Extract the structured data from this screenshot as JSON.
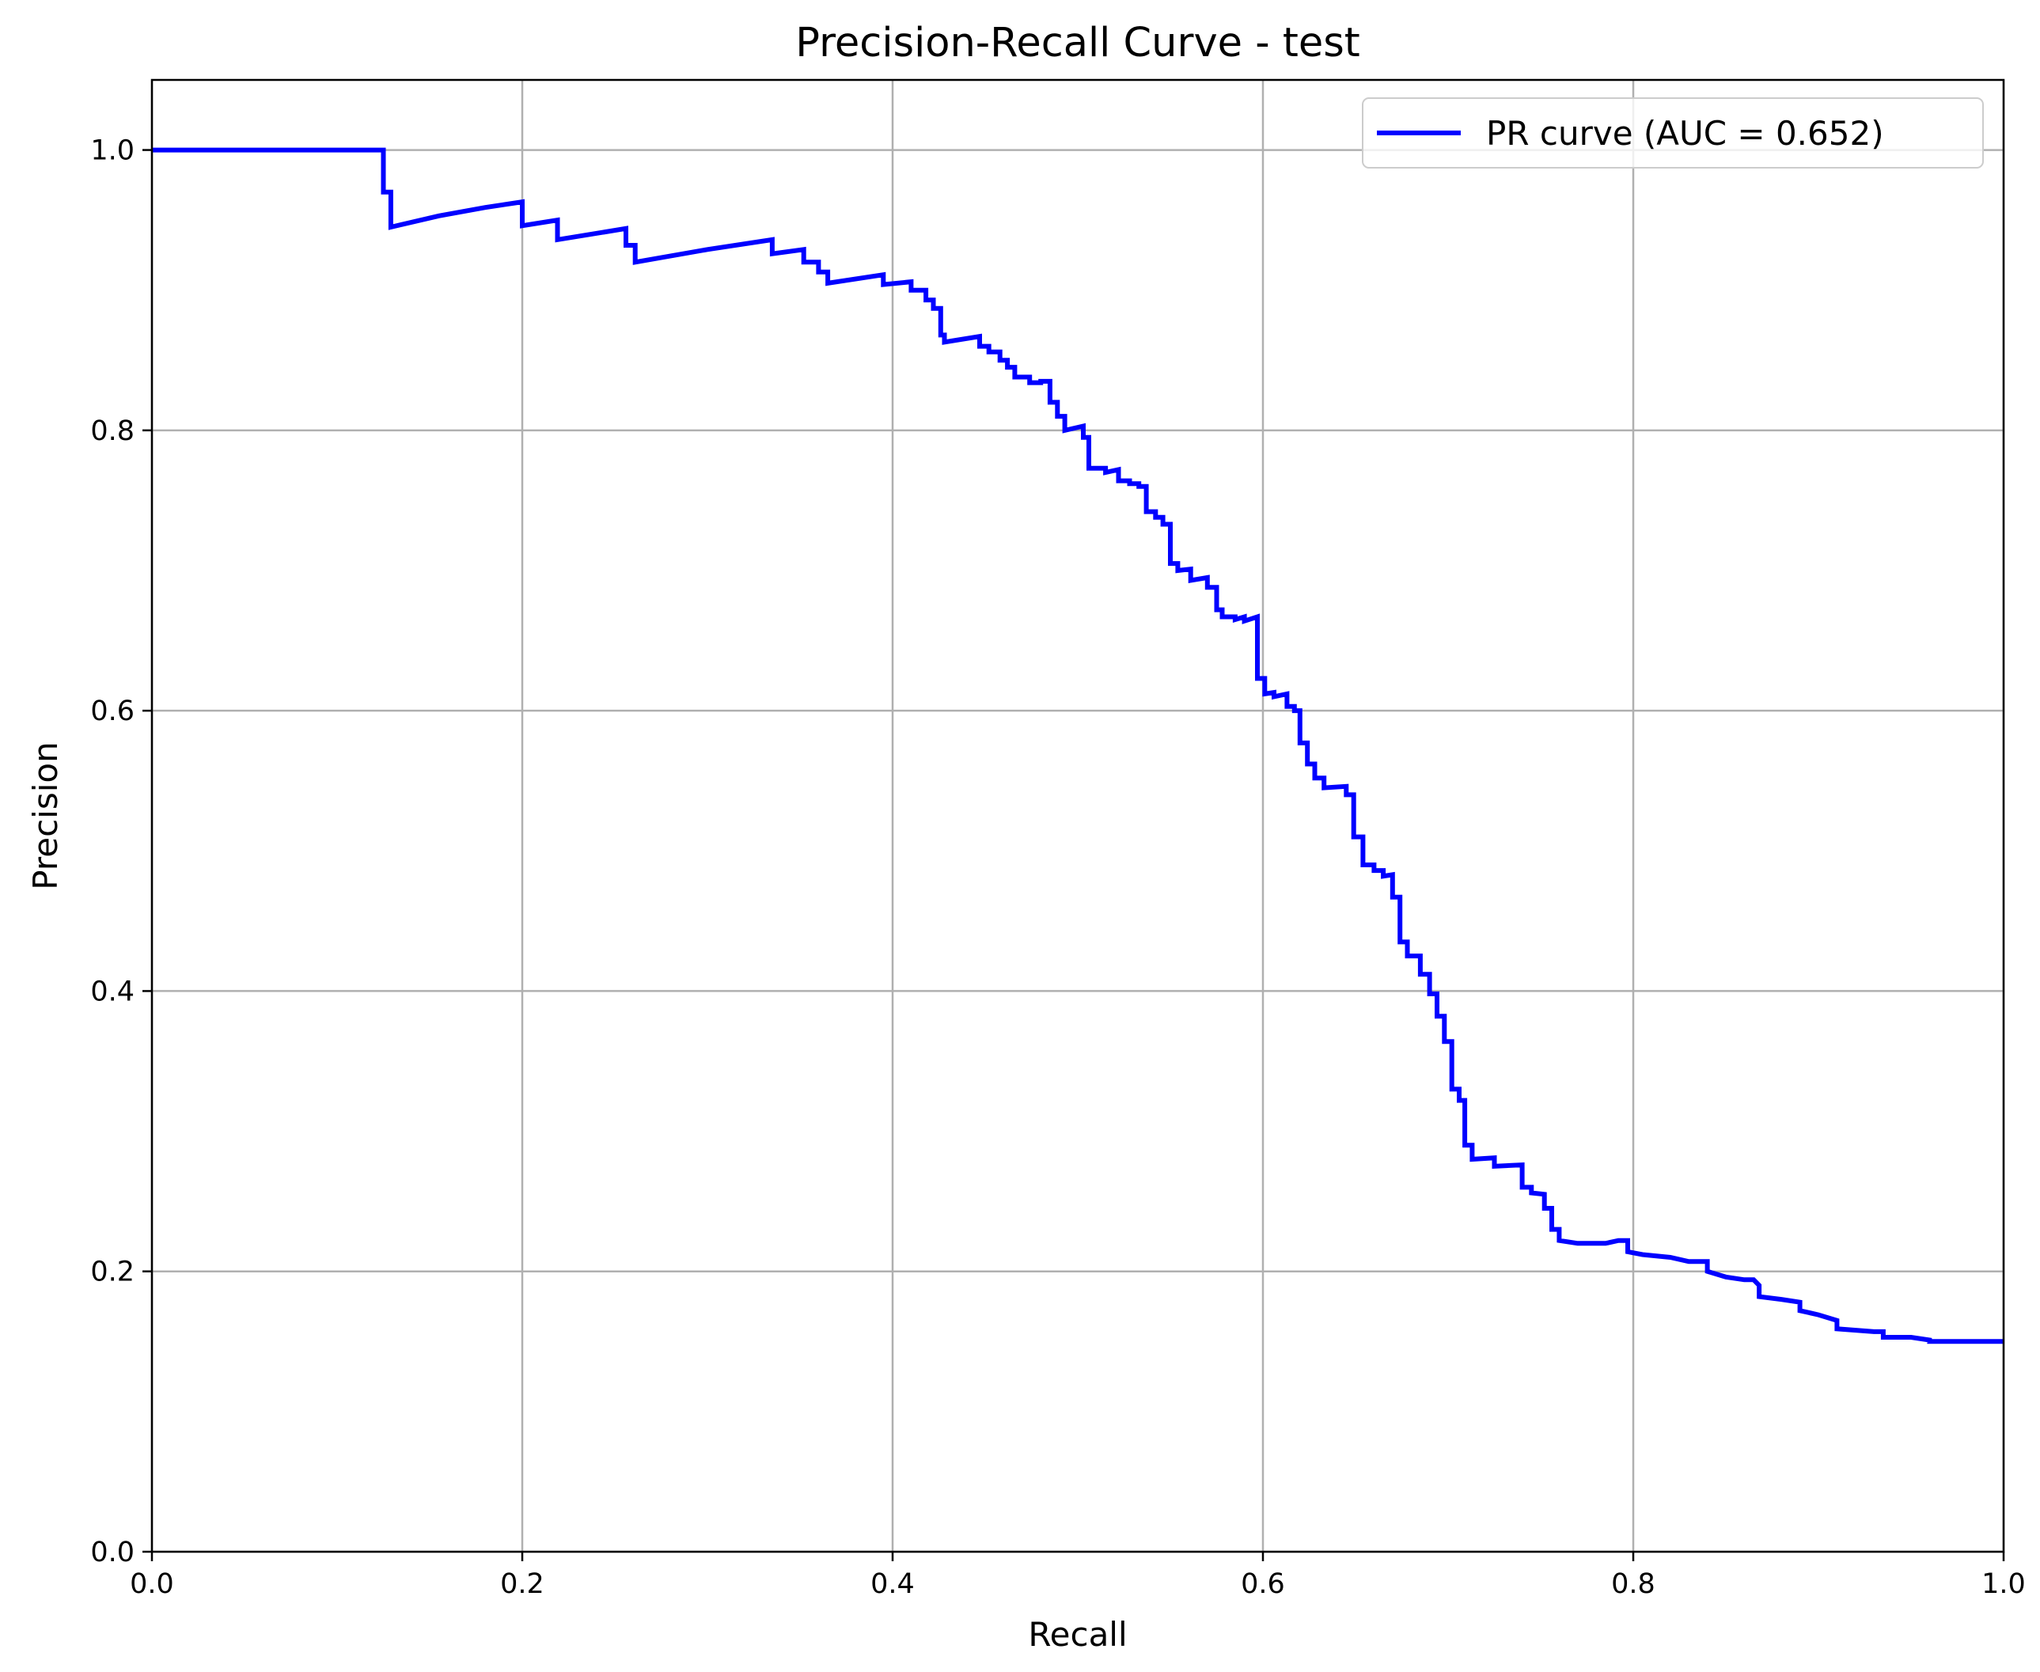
{
  "chart_data": {
    "type": "line",
    "title": "Precision-Recall Curve - test",
    "xlabel": "Recall",
    "ylabel": "Precision",
    "xlim": [
      0.0,
      1.0
    ],
    "ylim": [
      0.0,
      1.05
    ],
    "xticks": [
      0.0,
      0.2,
      0.4,
      0.6,
      0.8,
      1.0
    ],
    "xtick_labels": [
      "0.0",
      "0.2",
      "0.4",
      "0.6",
      "0.8",
      "1.0"
    ],
    "yticks": [
      0.0,
      0.2,
      0.4,
      0.6,
      0.8,
      1.0
    ],
    "ytick_labels": [
      "0.0",
      "0.2",
      "0.4",
      "0.6",
      "0.8",
      "1.0"
    ],
    "grid": true,
    "legend_position": "top-right",
    "series": [
      {
        "name": "PR curve (AUC = 0.652)",
        "color": "#0000ff",
        "points": [
          [
            0.0,
            1.0
          ],
          [
            0.125,
            1.0
          ],
          [
            0.125,
            0.97
          ],
          [
            0.129,
            0.97
          ],
          [
            0.129,
            0.945
          ],
          [
            0.155,
            0.953
          ],
          [
            0.18,
            0.959
          ],
          [
            0.2,
            0.963
          ],
          [
            0.2,
            0.946
          ],
          [
            0.219,
            0.95
          ],
          [
            0.219,
            0.936
          ],
          [
            0.256,
            0.944
          ],
          [
            0.256,
            0.932
          ],
          [
            0.261,
            0.932
          ],
          [
            0.261,
            0.92
          ],
          [
            0.3,
            0.929
          ],
          [
            0.335,
            0.936
          ],
          [
            0.335,
            0.926
          ],
          [
            0.352,
            0.929
          ],
          [
            0.352,
            0.92
          ],
          [
            0.36,
            0.92
          ],
          [
            0.36,
            0.913
          ],
          [
            0.365,
            0.913
          ],
          [
            0.365,
            0.905
          ],
          [
            0.395,
            0.911
          ],
          [
            0.395,
            0.904
          ],
          [
            0.41,
            0.906
          ],
          [
            0.41,
            0.9
          ],
          [
            0.418,
            0.9
          ],
          [
            0.418,
            0.893
          ],
          [
            0.422,
            0.893
          ],
          [
            0.422,
            0.887
          ],
          [
            0.426,
            0.887
          ],
          [
            0.426,
            0.868
          ],
          [
            0.428,
            0.868
          ],
          [
            0.428,
            0.863
          ],
          [
            0.447,
            0.867
          ],
          [
            0.447,
            0.86
          ],
          [
            0.452,
            0.86
          ],
          [
            0.452,
            0.856
          ],
          [
            0.458,
            0.856
          ],
          [
            0.458,
            0.85
          ],
          [
            0.462,
            0.85
          ],
          [
            0.462,
            0.845
          ],
          [
            0.466,
            0.845
          ],
          [
            0.466,
            0.838
          ],
          [
            0.474,
            0.838
          ],
          [
            0.474,
            0.834
          ],
          [
            0.48,
            0.834
          ],
          [
            0.48,
            0.835
          ],
          [
            0.485,
            0.835
          ],
          [
            0.485,
            0.82
          ],
          [
            0.489,
            0.82
          ],
          [
            0.489,
            0.81
          ],
          [
            0.493,
            0.81
          ],
          [
            0.493,
            0.8
          ],
          [
            0.503,
            0.803
          ],
          [
            0.503,
            0.795
          ],
          [
            0.506,
            0.795
          ],
          [
            0.506,
            0.773
          ],
          [
            0.515,
            0.773
          ],
          [
            0.515,
            0.77
          ],
          [
            0.522,
            0.772
          ],
          [
            0.522,
            0.764
          ],
          [
            0.528,
            0.764
          ],
          [
            0.528,
            0.762
          ],
          [
            0.533,
            0.762
          ],
          [
            0.533,
            0.76
          ],
          [
            0.537,
            0.76
          ],
          [
            0.537,
            0.742
          ],
          [
            0.542,
            0.742
          ],
          [
            0.542,
            0.738
          ],
          [
            0.546,
            0.738
          ],
          [
            0.546,
            0.733
          ],
          [
            0.55,
            0.733
          ],
          [
            0.55,
            0.705
          ],
          [
            0.554,
            0.705
          ],
          [
            0.554,
            0.7
          ],
          [
            0.561,
            0.701
          ],
          [
            0.561,
            0.693
          ],
          [
            0.57,
            0.695
          ],
          [
            0.57,
            0.688
          ],
          [
            0.575,
            0.688
          ],
          [
            0.575,
            0.672
          ],
          [
            0.578,
            0.672
          ],
          [
            0.578,
            0.667
          ],
          [
            0.585,
            0.667
          ],
          [
            0.585,
            0.665
          ],
          [
            0.59,
            0.667
          ],
          [
            0.59,
            0.664
          ],
          [
            0.597,
            0.667
          ],
          [
            0.597,
            0.623
          ],
          [
            0.601,
            0.623
          ],
          [
            0.601,
            0.612
          ],
          [
            0.606,
            0.613
          ],
          [
            0.606,
            0.61
          ],
          [
            0.613,
            0.612
          ],
          [
            0.613,
            0.603
          ],
          [
            0.617,
            0.603
          ],
          [
            0.617,
            0.6
          ],
          [
            0.62,
            0.6
          ],
          [
            0.62,
            0.577
          ],
          [
            0.624,
            0.577
          ],
          [
            0.624,
            0.562
          ],
          [
            0.628,
            0.562
          ],
          [
            0.628,
            0.552
          ],
          [
            0.633,
            0.552
          ],
          [
            0.633,
            0.545
          ],
          [
            0.645,
            0.546
          ],
          [
            0.645,
            0.54
          ],
          [
            0.649,
            0.54
          ],
          [
            0.649,
            0.51
          ],
          [
            0.654,
            0.51
          ],
          [
            0.654,
            0.49
          ],
          [
            0.66,
            0.49
          ],
          [
            0.66,
            0.486
          ],
          [
            0.665,
            0.486
          ],
          [
            0.665,
            0.482
          ],
          [
            0.67,
            0.483
          ],
          [
            0.67,
            0.467
          ],
          [
            0.674,
            0.467
          ],
          [
            0.674,
            0.435
          ],
          [
            0.678,
            0.435
          ],
          [
            0.678,
            0.425
          ],
          [
            0.685,
            0.425
          ],
          [
            0.685,
            0.412
          ],
          [
            0.69,
            0.412
          ],
          [
            0.69,
            0.398
          ],
          [
            0.694,
            0.398
          ],
          [
            0.694,
            0.382
          ],
          [
            0.698,
            0.382
          ],
          [
            0.698,
            0.364
          ],
          [
            0.702,
            0.364
          ],
          [
            0.702,
            0.33
          ],
          [
            0.706,
            0.33
          ],
          [
            0.706,
            0.322
          ],
          [
            0.709,
            0.322
          ],
          [
            0.709,
            0.29
          ],
          [
            0.713,
            0.29
          ],
          [
            0.713,
            0.28
          ],
          [
            0.725,
            0.281
          ],
          [
            0.725,
            0.275
          ],
          [
            0.74,
            0.276
          ],
          [
            0.74,
            0.26
          ],
          [
            0.745,
            0.26
          ],
          [
            0.745,
            0.256
          ],
          [
            0.752,
            0.255
          ],
          [
            0.752,
            0.245
          ],
          [
            0.756,
            0.245
          ],
          [
            0.756,
            0.23
          ],
          [
            0.76,
            0.23
          ],
          [
            0.76,
            0.222
          ],
          [
            0.77,
            0.22
          ],
          [
            0.785,
            0.22
          ],
          [
            0.792,
            0.222
          ],
          [
            0.797,
            0.222
          ],
          [
            0.797,
            0.214
          ],
          [
            0.805,
            0.212
          ],
          [
            0.82,
            0.21
          ],
          [
            0.83,
            0.207
          ],
          [
            0.84,
            0.207
          ],
          [
            0.84,
            0.2
          ],
          [
            0.85,
            0.196
          ],
          [
            0.86,
            0.194
          ],
          [
            0.865,
            0.194
          ],
          [
            0.868,
            0.19
          ],
          [
            0.868,
            0.182
          ],
          [
            0.88,
            0.18
          ],
          [
            0.89,
            0.178
          ],
          [
            0.89,
            0.172
          ],
          [
            0.9,
            0.169
          ],
          [
            0.91,
            0.165
          ],
          [
            0.91,
            0.159
          ],
          [
            0.93,
            0.157
          ],
          [
            0.935,
            0.157
          ],
          [
            0.935,
            0.153
          ],
          [
            0.95,
            0.153
          ],
          [
            0.96,
            0.151
          ],
          [
            0.96,
            0.15
          ],
          [
            0.975,
            0.15
          ],
          [
            0.99,
            0.15
          ],
          [
            1.0,
            0.15
          ]
        ]
      }
    ]
  }
}
